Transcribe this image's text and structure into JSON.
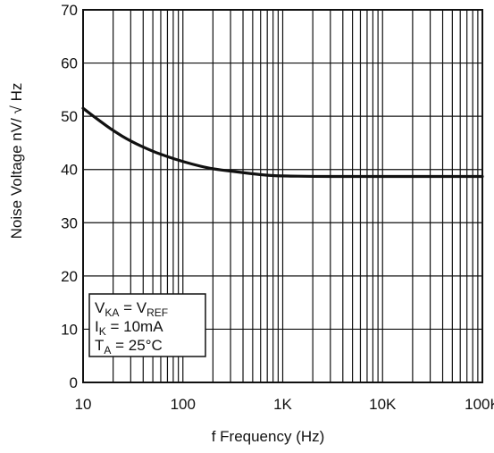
{
  "chart_data": {
    "type": "line",
    "title": "",
    "xlabel": "f Frequency (Hz)",
    "ylabel": "Noise Voltage nV/ √ Hz",
    "x_scale": "log",
    "xlim": [
      10,
      100000
    ],
    "ylim": [
      0,
      70
    ],
    "grid": true,
    "x_ticks": [
      {
        "value": 10,
        "label": "10"
      },
      {
        "value": 100,
        "label": "100"
      },
      {
        "value": 1000,
        "label": "1K"
      },
      {
        "value": 10000,
        "label": "10K"
      },
      {
        "value": 100000,
        "label": "100K"
      }
    ],
    "y_ticks": [
      0,
      10,
      20,
      30,
      40,
      50,
      60,
      70
    ],
    "series": [
      {
        "x": [
          10,
          15,
          20,
          30,
          50,
          70,
          100,
          150,
          200,
          300,
          500,
          700,
          1000,
          2000,
          5000,
          10000,
          30000,
          100000
        ],
        "y": [
          51.5,
          49.0,
          47.3,
          45.3,
          43.4,
          42.4,
          41.5,
          40.6,
          40.1,
          39.7,
          39.2,
          38.9,
          38.8,
          38.7,
          38.7,
          38.7,
          38.7,
          38.7
        ]
      }
    ],
    "annotation": {
      "position": "bottom-left",
      "lines": [
        {
          "parts": [
            {
              "text": "V",
              "sub": false
            },
            {
              "text": "KA",
              "sub": true
            },
            {
              "text": " = V",
              "sub": false
            },
            {
              "text": "REF",
              "sub": true
            }
          ]
        },
        {
          "parts": [
            {
              "text": "I",
              "sub": false
            },
            {
              "text": "K",
              "sub": true
            },
            {
              "text": " = 10mA",
              "sub": false
            }
          ]
        },
        {
          "parts": [
            {
              "text": "T",
              "sub": false
            },
            {
              "text": "A",
              "sub": true
            },
            {
              "text": " = 25°C",
              "sub": false
            }
          ]
        }
      ]
    }
  }
}
